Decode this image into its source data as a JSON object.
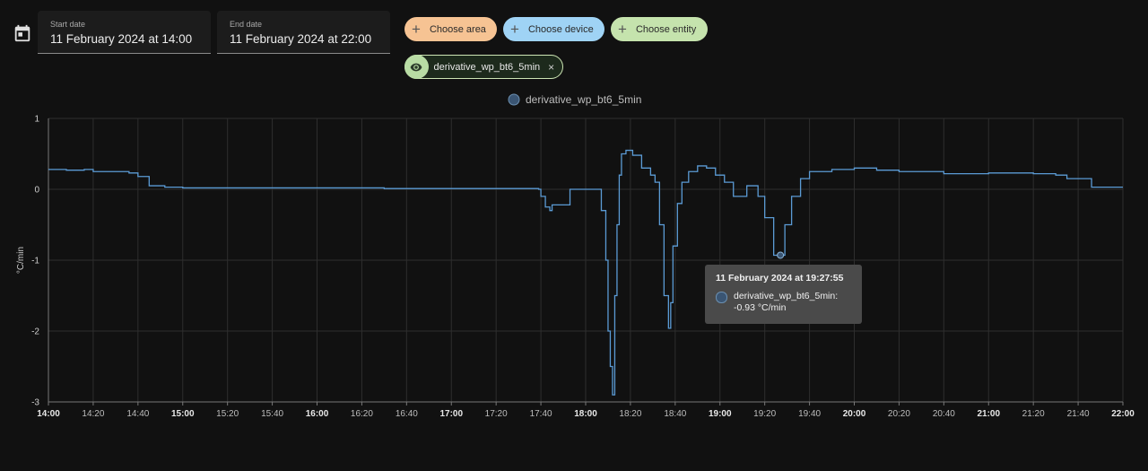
{
  "toolbar": {
    "calendar_icon": "calendar-icon",
    "start_date": {
      "label": "Start date",
      "value": "11 February 2024 at 14:00"
    },
    "end_date": {
      "label": "End date",
      "value": "11 February 2024 at 22:00"
    },
    "chips": [
      {
        "label": "Choose area",
        "color": "#f6c393"
      },
      {
        "label": "Choose device",
        "color": "#9fd3f5"
      },
      {
        "label": "Choose entity",
        "color": "#c5e3ad"
      }
    ],
    "selected_entity": {
      "label": "derivative_wp_bt6_5min",
      "remove": "×",
      "icon": "eye-icon"
    }
  },
  "tooltip": {
    "title": "11 February 2024 at 19:27:55",
    "series": "derivative_wp_bt6_5min:",
    "value": "-0.93 °C/min"
  },
  "chart_data": {
    "type": "line",
    "ylabel": "°C/min",
    "ylim": [
      -3,
      1
    ],
    "yticks": [
      1,
      0,
      -1,
      -2,
      -3
    ],
    "xlim": [
      "14:00",
      "22:00"
    ],
    "xticks": [
      "14:00",
      "14:20",
      "14:40",
      "15:00",
      "15:20",
      "15:40",
      "16:00",
      "16:20",
      "16:40",
      "17:00",
      "17:20",
      "17:40",
      "18:00",
      "18:20",
      "18:40",
      "19:00",
      "19:20",
      "19:40",
      "20:00",
      "20:20",
      "20:40",
      "21:00",
      "21:20",
      "21:40",
      "22:00"
    ],
    "bold_ticks": [
      "14:00",
      "15:00",
      "16:00",
      "17:00",
      "18:00",
      "19:00",
      "20:00",
      "21:00",
      "22:00"
    ],
    "legend": {
      "position": "top-center",
      "color": "#3a5573"
    },
    "series": [
      {
        "name": "derivative_wp_bt6_5min",
        "color": "#5b9bd5",
        "points": [
          [
            "14:00",
            0.28
          ],
          [
            "14:08",
            0.27
          ],
          [
            "14:16",
            0.28
          ],
          [
            "14:20",
            0.25
          ],
          [
            "14:36",
            0.23
          ],
          [
            "14:40",
            0.18
          ],
          [
            "14:45",
            0.05
          ],
          [
            "14:52",
            0.03
          ],
          [
            "15:00",
            0.02
          ],
          [
            "15:30",
            0.02
          ],
          [
            "16:00",
            0.02
          ],
          [
            "16:30",
            0.01
          ],
          [
            "17:00",
            0.01
          ],
          [
            "17:30",
            0.01
          ],
          [
            "17:39",
            0.0
          ],
          [
            "17:40",
            -0.1
          ],
          [
            "17:42",
            -0.25
          ],
          [
            "17:44",
            -0.3
          ],
          [
            "17:45",
            -0.22
          ],
          [
            "17:52",
            -0.22
          ],
          [
            "17:53",
            0.0
          ],
          [
            "18:06",
            0.0
          ],
          [
            "18:07",
            -0.3
          ],
          [
            "18:09",
            -1.0
          ],
          [
            "18:10",
            -2.0
          ],
          [
            "18:11",
            -2.5
          ],
          [
            "18:12",
            -2.9
          ],
          [
            "18:13",
            -1.5
          ],
          [
            "18:14",
            -0.5
          ],
          [
            "18:15",
            0.2
          ],
          [
            "18:16",
            0.5
          ],
          [
            "18:18",
            0.55
          ],
          [
            "18:21",
            0.48
          ],
          [
            "18:25",
            0.3
          ],
          [
            "18:29",
            0.2
          ],
          [
            "18:31",
            0.1
          ],
          [
            "18:33",
            -0.5
          ],
          [
            "18:35",
            -1.5
          ],
          [
            "18:37",
            -1.96
          ],
          [
            "18:38",
            -1.6
          ],
          [
            "18:39",
            -0.8
          ],
          [
            "18:41",
            -0.2
          ],
          [
            "18:43",
            0.1
          ],
          [
            "18:46",
            0.25
          ],
          [
            "18:50",
            0.33
          ],
          [
            "18:54",
            0.3
          ],
          [
            "18:58",
            0.2
          ],
          [
            "19:02",
            0.1
          ],
          [
            "19:06",
            -0.1
          ],
          [
            "19:09",
            -0.1
          ],
          [
            "19:12",
            0.05
          ],
          [
            "19:14",
            0.05
          ],
          [
            "19:17",
            -0.1
          ],
          [
            "19:20",
            -0.4
          ],
          [
            "19:24",
            -0.93
          ],
          [
            "19:27",
            -0.93
          ],
          [
            "19:29",
            -0.5
          ],
          [
            "19:32",
            -0.1
          ],
          [
            "19:36",
            0.15
          ],
          [
            "19:40",
            0.25
          ],
          [
            "19:50",
            0.28
          ],
          [
            "20:00",
            0.3
          ],
          [
            "20:10",
            0.27
          ],
          [
            "20:20",
            0.25
          ],
          [
            "20:40",
            0.22
          ],
          [
            "21:00",
            0.23
          ],
          [
            "21:20",
            0.22
          ],
          [
            "21:30",
            0.2
          ],
          [
            "21:35",
            0.15
          ],
          [
            "21:45",
            0.15
          ],
          [
            "21:46",
            0.03
          ],
          [
            "22:00",
            0.03
          ]
        ]
      }
    ],
    "highlight_point": [
      "19:27",
      -0.93
    ]
  }
}
